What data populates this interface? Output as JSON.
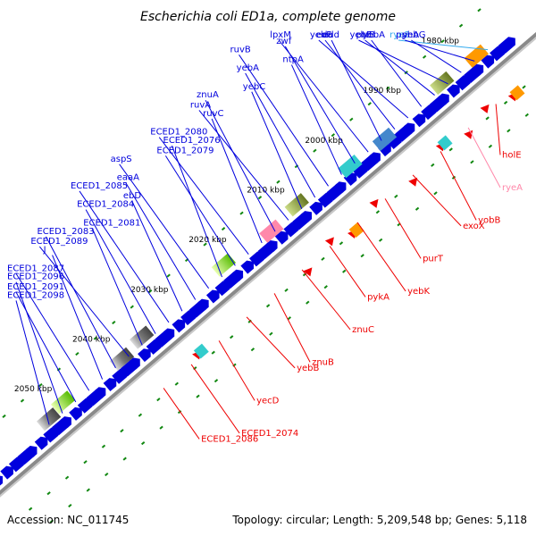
{
  "title": "Escherichia coli ED1a, complete genome",
  "footer": {
    "accession": "Accession: NC_011745",
    "summary": "Topology: circular; Length: 5,209,548 bp; Genes: 5,118"
  },
  "colors": {
    "forward_gene": "#0000dd",
    "reverse_gene": "#ee0000",
    "ncrna_label": "#33aaee",
    "pseudo_label": "#ff88aa",
    "backbone": "#888888",
    "tick": "#118811"
  },
  "kbp_marks": [
    {
      "label": "1980 kbp"
    },
    {
      "label": "1990 kbp"
    },
    {
      "label": "2000 kbp"
    },
    {
      "label": "2010 kbp"
    },
    {
      "label": "2020 kbp"
    },
    {
      "label": "2030 kbp"
    },
    {
      "label": "2040 kbp"
    },
    {
      "label": "2050 kbp"
    }
  ],
  "forward_labels": [
    "rye8",
    "pphA",
    "yebG",
    "yebE",
    "ptrB",
    "yobA",
    "yebF",
    "eda",
    "edd",
    "lpxM",
    "zwf",
    "ntpA",
    "ruvB",
    "yebA",
    "yebC",
    "ruvA",
    "znuA",
    "ruvC",
    "ECED1_2080",
    "ECED1_2079",
    "ECED1_2076",
    "aspS",
    "eaaA",
    "ebD",
    "ECED1_2085",
    "ECED1_2084",
    "ECED1_2081",
    "ECED1_2089",
    "ECED1_2083",
    "J",
    "ECED1_2087",
    "ECED1_2091",
    "ECED1_2096",
    "ECED1_2098"
  ],
  "reverse_labels": [
    "holE",
    "ryeA",
    "yobB",
    "exoX",
    "purT",
    "yebK",
    "pykA",
    "znuC",
    "znuB",
    "yebB",
    "yecD",
    "ECED1_2074",
    "ECED1_2086"
  ]
}
